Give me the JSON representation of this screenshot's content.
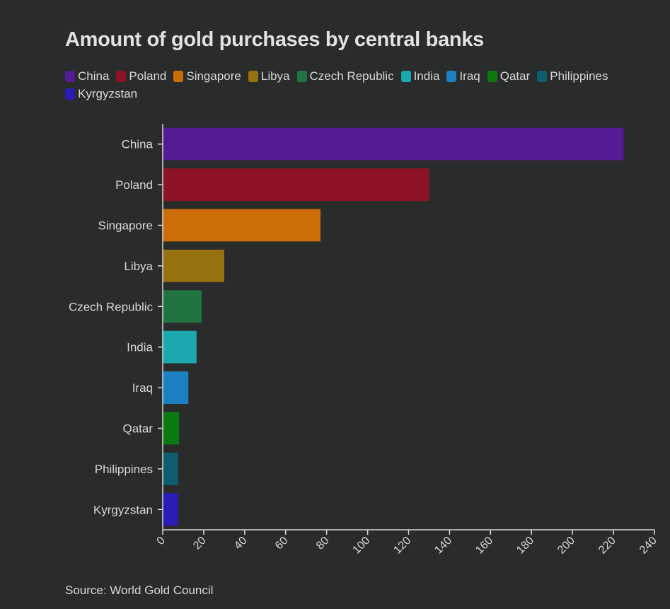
{
  "chart_data": {
    "type": "bar",
    "orientation": "horizontal",
    "title": "Amount of gold purchases by central banks",
    "source": "Source: World Gold Council",
    "categories": [
      "China",
      "Poland",
      "Singapore",
      "Libya",
      "Czech Republic",
      "India",
      "Iraq",
      "Qatar",
      "Philippines",
      "Kyrgyzstan"
    ],
    "values": [
      225,
      130,
      77,
      30,
      19,
      16.5,
      12.5,
      8,
      7.5,
      7.5
    ],
    "colors": [
      "#551a96",
      "#8e1225",
      "#cc6e08",
      "#977210",
      "#1f7440",
      "#1ba8ae",
      "#1d80c2",
      "#0b7a10",
      "#0e5e70",
      "#2b1cb8"
    ],
    "xlabel": "",
    "ylabel": "",
    "xlim": [
      0,
      240
    ],
    "xticks": [
      0,
      20,
      40,
      60,
      80,
      100,
      120,
      140,
      160,
      180,
      200,
      220,
      240
    ],
    "grid": false,
    "legend_position": "top"
  }
}
